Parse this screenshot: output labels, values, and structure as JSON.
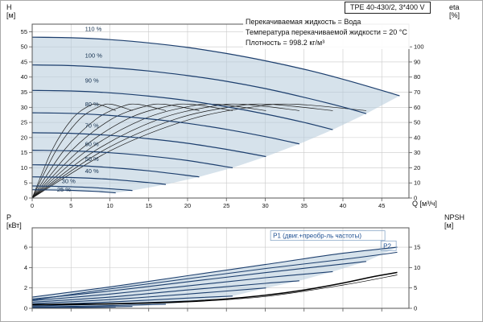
{
  "header": {
    "model": "TPE 40-430/2, 3*400 V",
    "info_lines": [
      "Перекачиваемая жидкость = Вода",
      "Температура перекачиваемой жидкости = 20 °C",
      "Плотность = 998.2 кг/м³"
    ]
  },
  "axes_labels": {
    "h_line1": "H",
    "h_line2": "[м]",
    "eta_line1": "eta",
    "eta_line2": "[%]",
    "p_line1": "P",
    "p_line2": "[кВт]",
    "npsh_line1": "NPSH",
    "npsh_line2": "[м]",
    "x_label": "Q [м³/ч]"
  },
  "colors": {
    "curve_blue": "#1d3f6e",
    "eta_black": "#1a1a1a",
    "envelope": "#b5cbdb",
    "grid": "#c9c9c9",
    "label_blue": "#1d4f91",
    "label_navy": "#14304f",
    "text": "#111111",
    "axis": "#555555"
  },
  "chart_data": [
    {
      "type": "line",
      "panel": "head-flow",
      "xlabel": "Q [м³/ч]",
      "ylabel": "H [м]",
      "y2label": "eta [%]",
      "x_range": [
        0,
        48.5
      ],
      "y_range": [
        0,
        57.5
      ],
      "y2_range": [
        0,
        115
      ],
      "x_ticks": [
        0,
        5,
        10,
        15,
        20,
        25,
        30,
        35,
        40,
        45
      ],
      "y_ticks": [
        0,
        5,
        10,
        15,
        20,
        25,
        30,
        35,
        40,
        45,
        50,
        55
      ],
      "y2_ticks": [
        0,
        10,
        20,
        30,
        40,
        50,
        60,
        70,
        80,
        90,
        100
      ],
      "speed_curves": [
        {
          "label": "110 %",
          "label_q": 6.8,
          "label_h": 55.2,
          "points": [
            [
              0,
              53.2
            ],
            [
              5,
              53
            ],
            [
              10,
              52.4
            ],
            [
              15,
              51.3
            ],
            [
              20,
              49.8
            ],
            [
              25,
              47.8
            ],
            [
              30,
              45.4
            ],
            [
              35,
              42.6
            ],
            [
              40,
              39.3
            ],
            [
              45,
              35.6
            ],
            [
              47.3,
              33.8
            ]
          ]
        },
        {
          "label": "100 %",
          "label_q": 6.8,
          "label_h": 46.4,
          "points": [
            [
              0,
              44
            ],
            [
              5,
              43.8
            ],
            [
              10,
              43.1
            ],
            [
              15,
              42
            ],
            [
              20,
              40.5
            ],
            [
              25,
              38.6
            ],
            [
              30,
              36.2
            ],
            [
              35,
              33.3
            ],
            [
              40,
              30.1
            ],
            [
              43,
              27.9
            ]
          ]
        },
        {
          "label": "90 %",
          "label_q": 6.8,
          "label_h": 38.2,
          "points": [
            [
              0,
              35.6
            ],
            [
              5,
              35.4
            ],
            [
              10,
              34.8
            ],
            [
              15,
              33.7
            ],
            [
              20,
              32.2
            ],
            [
              25,
              30.2
            ],
            [
              30,
              27.8
            ],
            [
              35,
              25
            ],
            [
              38.7,
              22.6
            ]
          ]
        },
        {
          "label": "80 %",
          "label_q": 6.8,
          "label_h": 30.3,
          "points": [
            [
              0,
              28.2
            ],
            [
              5,
              28
            ],
            [
              10,
              27.3
            ],
            [
              15,
              26.2
            ],
            [
              20,
              24.7
            ],
            [
              25,
              22.7
            ],
            [
              30,
              20.3
            ],
            [
              34.4,
              17.9
            ]
          ]
        },
        {
          "label": "70 %",
          "label_q": 6.8,
          "label_h": 23.3,
          "points": [
            [
              0,
              21.6
            ],
            [
              5,
              21.4
            ],
            [
              10,
              20.7
            ],
            [
              15,
              19.6
            ],
            [
              20,
              18.1
            ],
            [
              25,
              16.1
            ],
            [
              30.1,
              13.7
            ]
          ]
        },
        {
          "label": "60 %",
          "label_q": 6.8,
          "label_h": 17.2,
          "points": [
            [
              0,
              15.8
            ],
            [
              5,
              15.6
            ],
            [
              10,
              15
            ],
            [
              15,
              13.9
            ],
            [
              20,
              12.4
            ],
            [
              25.8,
              10
            ]
          ]
        },
        {
          "label": "50 %",
          "label_q": 6.8,
          "label_h": 12.3,
          "points": [
            [
              0,
              11
            ],
            [
              5,
              10.8
            ],
            [
              10,
              10.1
            ],
            [
              15,
              9
            ],
            [
              21.5,
              7
            ]
          ]
        },
        {
          "label": "40 %",
          "label_q": 6.8,
          "label_h": 8.2,
          "points": [
            [
              0,
              7
            ],
            [
              5,
              6.8
            ],
            [
              10,
              6.2
            ],
            [
              15,
              5.1
            ],
            [
              17.2,
              4.5
            ]
          ]
        },
        {
          "label": "30 %",
          "label_q": 3.8,
          "label_h": 4.9,
          "points": [
            [
              0,
              4
            ],
            [
              4,
              3.8
            ],
            [
              8,
              3.4
            ],
            [
              12.9,
              2.5
            ]
          ]
        },
        {
          "label": "25 %",
          "label_q": 3.2,
          "label_h": 2.1,
          "points": [
            [
              0,
              2.75
            ],
            [
              4,
              2.6
            ],
            [
              8,
              2.2
            ],
            [
              10.75,
              1.74
            ]
          ]
        }
      ],
      "eta_profile": [
        0,
        31.6,
        52.1,
        60.6,
        62,
        57.8
      ],
      "eta_curves": [
        {
          "speed": "100",
          "q": [
            0,
            10.2,
            20.4,
            28.9,
            34,
            43
          ]
        },
        {
          "speed": "90",
          "q": [
            0,
            9.2,
            18.4,
            26,
            30.6,
            38.7
          ]
        },
        {
          "speed": "80",
          "q": [
            0,
            8.2,
            16.3,
            23.1,
            27.2,
            34.4
          ]
        },
        {
          "speed": "70",
          "q": [
            0,
            7.1,
            14.3,
            20.2,
            23.8,
            30.1
          ]
        },
        {
          "speed": "60",
          "q": [
            0,
            6.1,
            12.2,
            17.3,
            20.4,
            25.8
          ]
        },
        {
          "speed": "50",
          "q": [
            0,
            5.1,
            10.2,
            14.5,
            17,
            21.5
          ]
        },
        {
          "speed": "40",
          "q": [
            0,
            4.1,
            8.2,
            11.6,
            13.6,
            17.2
          ]
        },
        {
          "speed": "30",
          "q": [
            0,
            3.1,
            6.1,
            8.7,
            10.2,
            12.9
          ]
        },
        {
          "speed": "25",
          "q": [
            0,
            2.55,
            5.1,
            7.2,
            8.5,
            10.75
          ]
        }
      ],
      "envelope": [
        [
          0,
          53.2
        ],
        [
          5,
          53
        ],
        [
          10,
          52.4
        ],
        [
          15,
          51.3
        ],
        [
          20,
          49.8
        ],
        [
          25,
          47.8
        ],
        [
          30,
          45.4
        ],
        [
          35,
          42.6
        ],
        [
          40,
          39.3
        ],
        [
          45,
          35.6
        ],
        [
          47.3,
          33.8
        ],
        [
          43,
          27.9
        ],
        [
          38.7,
          22.6
        ],
        [
          34.4,
          17.9
        ],
        [
          30.1,
          13.7
        ],
        [
          25.8,
          10
        ],
        [
          21.5,
          7
        ],
        [
          17.2,
          4.5
        ],
        [
          12.9,
          2.5
        ],
        [
          10.75,
          1.74
        ],
        [
          8,
          2.2
        ],
        [
          4,
          2.6
        ],
        [
          0,
          2.75
        ]
      ]
    },
    {
      "type": "line",
      "panel": "power-npsh",
      "ylabel": "P [кВт]",
      "y2label": "NPSH [м]",
      "y_range": [
        0,
        7.9
      ],
      "y2_range": [
        0,
        19.75
      ],
      "y_ticks": [
        0,
        2,
        4,
        6
      ],
      "y2_ticks": [
        0,
        5,
        10,
        15
      ],
      "p1_label": {
        "text": "P1 (двиг.+преобр-ль частоты)",
        "q": 31,
        "p": 6.9
      },
      "p2_label": {
        "text": "P2",
        "q": 45.2,
        "p": 5.9
      },
      "power_curves": [
        {
          "speed": "110",
          "points": [
            [
              0,
              1.1
            ],
            [
              10,
              2.1
            ],
            [
              20,
              3.2
            ],
            [
              30,
              4.3
            ],
            [
              40,
              5.4
            ],
            [
              47,
              6.0
            ]
          ]
        },
        {
          "speed": "100",
          "points": [
            [
              0,
              0.9
            ],
            [
              10,
              1.7
            ],
            [
              20,
              2.6
            ],
            [
              30,
              3.5
            ],
            [
              43,
              4.6
            ]
          ]
        },
        {
          "speed": "90",
          "points": [
            [
              0,
              0.75
            ],
            [
              10,
              1.4
            ],
            [
              20,
              2.2
            ],
            [
              30,
              3.0
            ],
            [
              38.7,
              3.6
            ]
          ]
        },
        {
          "speed": "80",
          "points": [
            [
              0,
              0.6
            ],
            [
              10,
              1.1
            ],
            [
              20,
              1.8
            ],
            [
              30,
              2.45
            ],
            [
              34.4,
              2.7
            ]
          ]
        },
        {
          "speed": "70",
          "points": [
            [
              0,
              0.45
            ],
            [
              10,
              0.85
            ],
            [
              20,
              1.4
            ],
            [
              30.1,
              2.0
            ]
          ]
        },
        {
          "speed": "60",
          "points": [
            [
              0,
              0.33
            ],
            [
              10,
              0.62
            ],
            [
              20,
              1.0
            ],
            [
              25.8,
              1.2
            ]
          ]
        },
        {
          "speed": "50",
          "points": [
            [
              0,
              0.22
            ],
            [
              10,
              0.44
            ],
            [
              21.5,
              0.75
            ]
          ]
        },
        {
          "speed": "40",
          "points": [
            [
              0,
              0.13
            ],
            [
              10,
              0.27
            ],
            [
              17.2,
              0.4
            ]
          ]
        },
        {
          "speed": "30",
          "points": [
            [
              0,
              0.06
            ],
            [
              12.9,
              0.18
            ]
          ]
        },
        {
          "speed": "25",
          "points": [
            [
              0,
              0.04
            ],
            [
              10.75,
              0.12
            ]
          ]
        }
      ],
      "p2_curve": [
        [
          0,
          0.8
        ],
        [
          10,
          1.9
        ],
        [
          20,
          2.9
        ],
        [
          30,
          3.9
        ],
        [
          40,
          4.8
        ],
        [
          47,
          5.5
        ]
      ],
      "npsh_curves": [
        [
          [
            0,
            0.9
          ],
          [
            5,
            1.0
          ],
          [
            10,
            1.1
          ],
          [
            15,
            1.3
          ],
          [
            20,
            1.7
          ],
          [
            25,
            2.3
          ],
          [
            30,
            3.2
          ],
          [
            35,
            4.5
          ],
          [
            40,
            6.2
          ],
          [
            44,
            7.8
          ],
          [
            47,
            8.8
          ]
        ],
        [
          [
            0,
            0.8
          ],
          [
            10,
            1.0
          ],
          [
            20,
            1.55
          ],
          [
            30,
            2.9
          ],
          [
            40,
            5.7
          ],
          [
            47,
            8.2
          ]
        ]
      ],
      "envelope": [
        [
          0,
          1.1
        ],
        [
          10,
          2.1
        ],
        [
          20,
          3.2
        ],
        [
          30,
          4.3
        ],
        [
          40,
          5.4
        ],
        [
          47,
          6.0
        ],
        [
          43,
          4.6
        ],
        [
          38.7,
          3.6
        ],
        [
          34.4,
          2.7
        ],
        [
          30.1,
          2.0
        ],
        [
          25.8,
          1.2
        ],
        [
          21.5,
          0.75
        ],
        [
          17.2,
          0.4
        ],
        [
          12.9,
          0.18
        ],
        [
          10.75,
          0.12
        ],
        [
          0,
          0.04
        ]
      ]
    }
  ]
}
